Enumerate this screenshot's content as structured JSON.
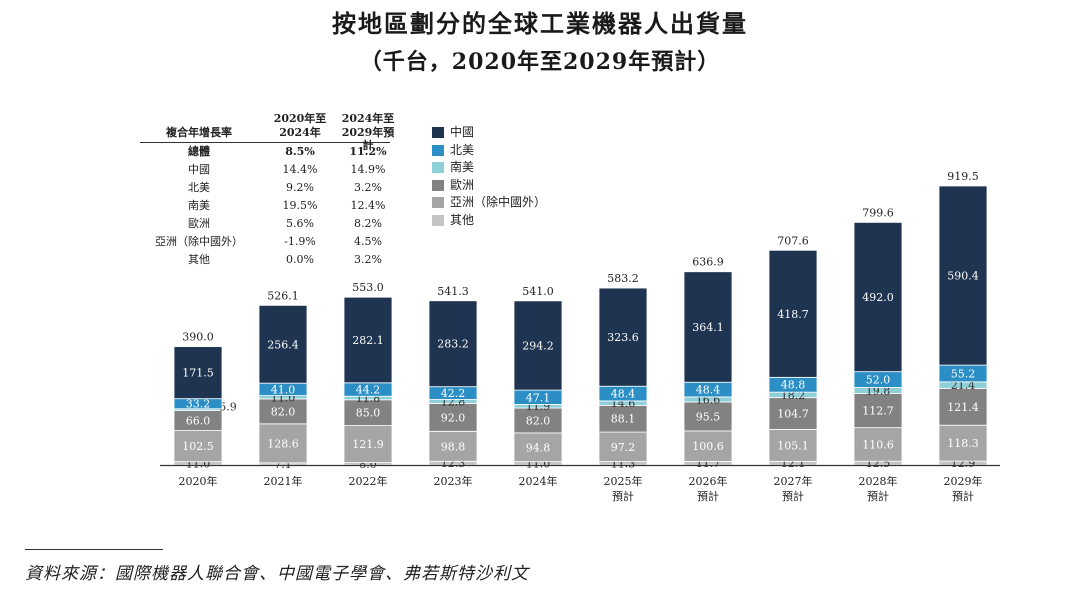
{
  "title": "按地區劃分的全球工業機器人出貨量",
  "subtitle": "（千台，2020年至2029年預計）",
  "colors": {
    "china": "#1f3450",
    "north_america": "#2b8fc6",
    "south_america": "#8fd0d8",
    "europe": "#828282",
    "asia_ex_china": "#a5a5a5",
    "other": "#c4c4c4"
  },
  "cagr_table": {
    "header_label": "複合年增長率",
    "col1_line1": "2020年至",
    "col1_line2": "2024年",
    "col2_line1": "2024年至",
    "col2_line2": "2029年預計",
    "rows": [
      {
        "label": "總體",
        "v1": "8.5%",
        "v2": "11.2%"
      },
      {
        "label": "中國",
        "v1": "14.4%",
        "v2": "14.9%"
      },
      {
        "label": "北美",
        "v1": "9.2%",
        "v2": "3.2%"
      },
      {
        "label": "南美",
        "v1": "19.5%",
        "v2": "12.4%"
      },
      {
        "label": "歐洲",
        "v1": "5.6%",
        "v2": "8.2%"
      },
      {
        "label": "亞洲（除中國外）",
        "v1": "-1.9%",
        "v2": "4.5%"
      },
      {
        "label": "其他",
        "v1": "0.0%",
        "v2": "3.2%"
      }
    ]
  },
  "legend": [
    {
      "label": "中國",
      "color": "#1f3450"
    },
    {
      "label": "北美",
      "color": "#2b8fc6"
    },
    {
      "label": "南美",
      "color": "#8fd0d8"
    },
    {
      "label": "歐洲",
      "color": "#828282"
    },
    {
      "label": "亞洲（除中國外）",
      "color": "#a5a5a5"
    },
    {
      "label": "其他",
      "color": "#c4c4c4"
    }
  ],
  "chart_data": {
    "type": "bar",
    "stacked": true,
    "title": "按地區劃分的全球工業機器人出貨量",
    "subtitle": "（千台，2020年至2029年預計）",
    "categories": [
      "2020年",
      "2021年",
      "2022年",
      "2023年",
      "2024年",
      "2025年\n預計",
      "2026年\n預計",
      "2027年\n預計",
      "2028年\n預計",
      "2029年\n預計"
    ],
    "totals": [
      "390.0",
      "526.1",
      "553.0",
      "541.3",
      "541.0",
      "583.2",
      "636.9",
      "707.6",
      "799.6",
      "919.5"
    ],
    "series": [
      {
        "name": "其他",
        "key": "other",
        "values": [
          11.0,
          7.1,
          8.0,
          12.3,
          11.0,
          11.3,
          11.7,
          12.1,
          12.5,
          12.9
        ],
        "labels": [
          "11.0",
          "7.1",
          "8.0",
          "12.3",
          "11.0",
          "11.3",
          "11.7",
          "12.1",
          "12.5",
          "12.9"
        ]
      },
      {
        "name": "亞洲（除中國外）",
        "key": "asia_ex_china",
        "values": [
          102.5,
          128.6,
          121.9,
          98.8,
          94.8,
          97.2,
          100.6,
          105.1,
          110.6,
          118.3
        ],
        "labels": [
          "102.5",
          "128.6",
          "121.9",
          "98.8",
          "94.8",
          "97.2",
          "100.6",
          "105.1",
          "110.6",
          "118.3"
        ]
      },
      {
        "name": "歐洲",
        "key": "europe",
        "values": [
          66.0,
          82.0,
          85.0,
          92.0,
          82.0,
          88.1,
          95.5,
          104.7,
          112.7,
          121.4
        ],
        "labels": [
          "66.0",
          "82.0",
          "85.0",
          "92.0",
          "82.0",
          "88.1",
          "95.5",
          "104.7",
          "112.7",
          "121.4"
        ]
      },
      {
        "name": "南美",
        "key": "south_america",
        "values": [
          5.9,
          11.0,
          11.8,
          12.8,
          11.9,
          14.6,
          16.6,
          18.2,
          19.8,
          21.4
        ],
        "labels": [
          "5.9",
          "11.0",
          "11.8",
          "12.8",
          "11.9",
          "14.6",
          "16.6",
          "18.2",
          "19.8",
          "21.4"
        ]
      },
      {
        "name": "北美",
        "key": "north_america",
        "values": [
          33.2,
          41.0,
          44.2,
          42.2,
          47.1,
          48.4,
          48.4,
          48.8,
          52.0,
          55.2
        ],
        "labels": [
          "33.2",
          "41.0",
          "44.2",
          "42.2",
          "47.1",
          "48.4",
          "48.4",
          "48.8",
          "52.0",
          "55.2"
        ]
      },
      {
        "name": "中國",
        "key": "china",
        "values": [
          171.5,
          256.4,
          282.1,
          283.2,
          294.2,
          323.6,
          364.1,
          418.7,
          492.0,
          590.4
        ],
        "labels": [
          "171.5",
          "256.4",
          "282.1",
          "283.2",
          "294.2",
          "323.6",
          "364.1",
          "418.7",
          "492.0",
          "590.4"
        ]
      }
    ],
    "ylim": [
      0,
      919.5
    ],
    "xlabel": "",
    "ylabel": ""
  },
  "source": "資料來源：國際機器人聯合會、中國電子學會、弗若斯特沙利文"
}
